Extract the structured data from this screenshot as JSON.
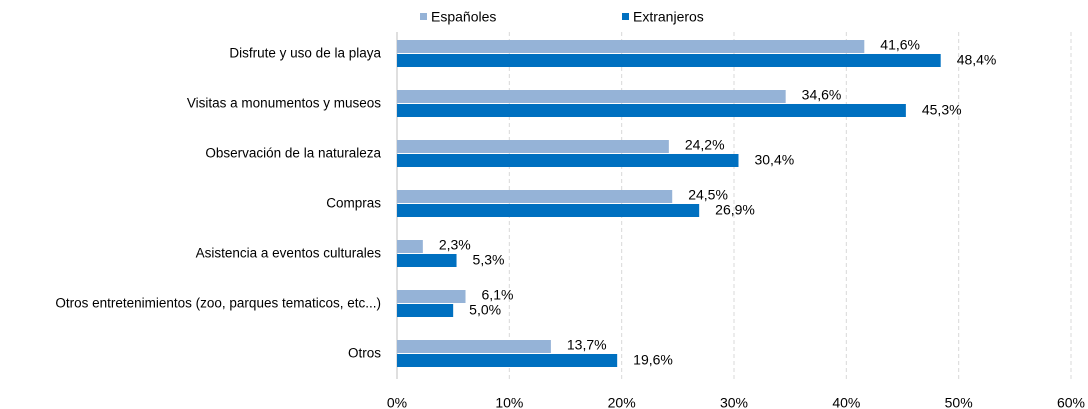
{
  "chart_data": {
    "type": "bar",
    "orientation": "horizontal",
    "categories": [
      "Disfrute y uso de la playa",
      "Visitas a monumentos y museos",
      "Observación de la naturaleza",
      "Compras",
      "Asistencia a eventos culturales",
      "Otros entretenimientos (zoo, parques tematicos, etc...)",
      "Otros"
    ],
    "series": [
      {
        "name": "Españoles",
        "color": "#95b3d7",
        "values": [
          41.6,
          34.6,
          24.2,
          24.5,
          2.3,
          6.1,
          13.7
        ],
        "value_labels": [
          "41,6%",
          "34,6%",
          "24,2%",
          "24,5%",
          "2,3%",
          "6,1%",
          "13,7%"
        ]
      },
      {
        "name": "Extranjeros",
        "color": "#0070c0",
        "values": [
          48.4,
          45.3,
          30.4,
          26.9,
          5.3,
          5.0,
          19.6
        ],
        "value_labels": [
          "48,4%",
          "45,3%",
          "30,4%",
          "26,9%",
          "5,3%",
          "5,0%",
          "19,6%"
        ]
      }
    ],
    "xlim": [
      0,
      60
    ],
    "xticks": [
      {
        "value": 0,
        "label": "0%"
      },
      {
        "value": 10,
        "label": "10%"
      },
      {
        "value": 20,
        "label": "20%"
      },
      {
        "value": 30,
        "label": "30%"
      },
      {
        "value": 40,
        "label": "40%"
      },
      {
        "value": 50,
        "label": "50%"
      },
      {
        "value": 60,
        "label": "60%"
      }
    ],
    "grid": true,
    "legend": "top"
  }
}
